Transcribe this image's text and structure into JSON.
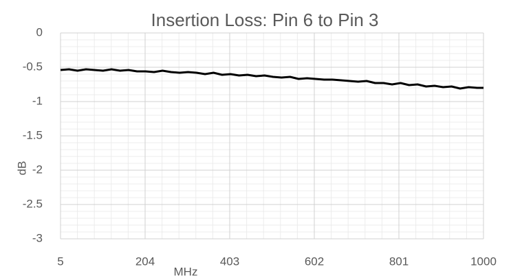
{
  "chart_data": {
    "type": "line",
    "title": "Insertion Loss: Pin 6 to Pin 3",
    "x_label": "MHz",
    "y_label": "dB",
    "x": [
      5,
      25,
      45,
      65,
      85,
      105,
      125,
      145,
      165,
      185,
      205,
      225,
      245,
      265,
      285,
      305,
      325,
      345,
      365,
      385,
      405,
      425,
      445,
      465,
      485,
      505,
      525,
      545,
      565,
      585,
      605,
      625,
      645,
      665,
      685,
      705,
      725,
      745,
      765,
      785,
      805,
      825,
      845,
      865,
      885,
      905,
      925,
      945,
      965,
      985,
      1000
    ],
    "series": [
      {
        "name": "Insertion Loss",
        "color": "#000000",
        "values": [
          -0.54,
          -0.53,
          -0.55,
          -0.53,
          -0.54,
          -0.55,
          -0.53,
          -0.55,
          -0.54,
          -0.56,
          -0.56,
          -0.57,
          -0.55,
          -0.57,
          -0.58,
          -0.57,
          -0.58,
          -0.6,
          -0.58,
          -0.61,
          -0.6,
          -0.62,
          -0.61,
          -0.63,
          -0.62,
          -0.64,
          -0.65,
          -0.64,
          -0.67,
          -0.66,
          -0.67,
          -0.68,
          -0.68,
          -0.69,
          -0.7,
          -0.71,
          -0.7,
          -0.73,
          -0.73,
          -0.75,
          -0.73,
          -0.76,
          -0.75,
          -0.78,
          -0.77,
          -0.79,
          -0.78,
          -0.81,
          -0.79,
          -0.8,
          -0.8
        ]
      }
    ],
    "xlim": [
      5,
      1000
    ],
    "xticks": [
      5,
      204,
      403,
      602,
      801,
      1000
    ],
    "ylim": [
      -3,
      0
    ],
    "yticks": [
      0,
      -0.5,
      -1,
      -1.5,
      -2,
      -2.5,
      -3
    ],
    "grid": true,
    "minor_grid": true
  }
}
